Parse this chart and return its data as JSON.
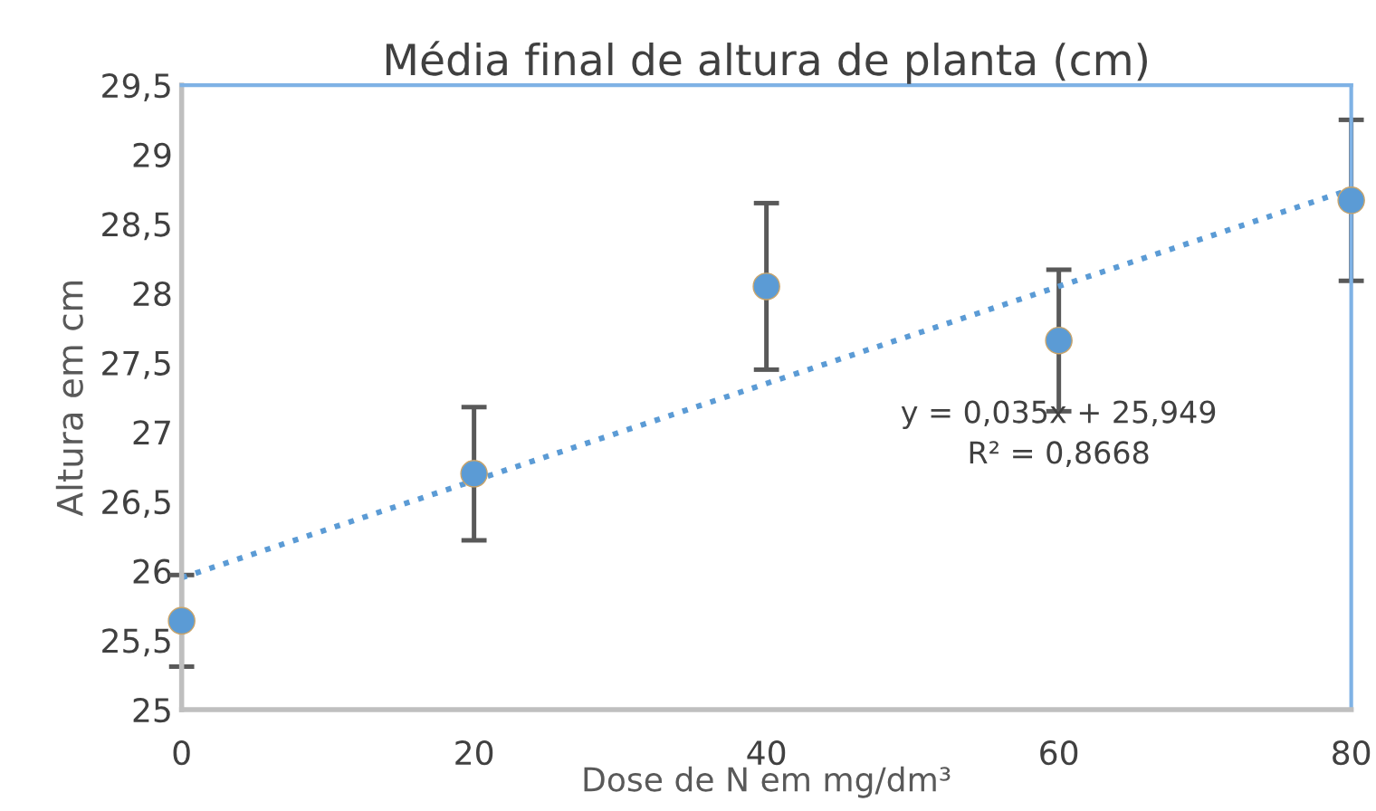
{
  "chart_data": {
    "type": "scatter",
    "title": "Média final de altura de planta (cm)",
    "xlabel": "Dose de N em mg/dm³",
    "ylabel": "Altura em cm",
    "x": [
      0,
      20,
      40,
      60,
      80
    ],
    "series": [
      {
        "color": "#5b9bd5",
        "values": [
          25.64,
          26.7,
          28.05,
          27.66,
          28.67
        ],
        "errors": [
          0.33,
          0.48,
          0.6,
          0.51,
          0.58
        ],
        "marker": "circle"
      },
      {
        "type": "line",
        "color": "#5b9bd5",
        "x": [
          0,
          80
        ],
        "values": [
          25.95,
          28.75
        ],
        "line_style": "dotted",
        "marker": "none"
      }
    ],
    "annotations": [
      "y = 0,035x + 25,949\nR² = 0,8668"
    ],
    "xlim": [
      0,
      80
    ],
    "xticks": [
      0,
      20,
      40,
      60,
      80
    ],
    "ylim": [
      25,
      29.5
    ],
    "yticks": [
      25,
      {
        "value": 25.5,
        "label": "25,5"
      },
      26,
      {
        "value": 26.5,
        "label": "26,5"
      },
      27,
      {
        "value": 27.5,
        "label": "27,5"
      },
      28,
      {
        "value": 28.5,
        "label": "28,5"
      },
      29,
      {
        "value": 29.5,
        "label": "29,5"
      }
    ],
    "grid": false,
    "legend": false
  }
}
